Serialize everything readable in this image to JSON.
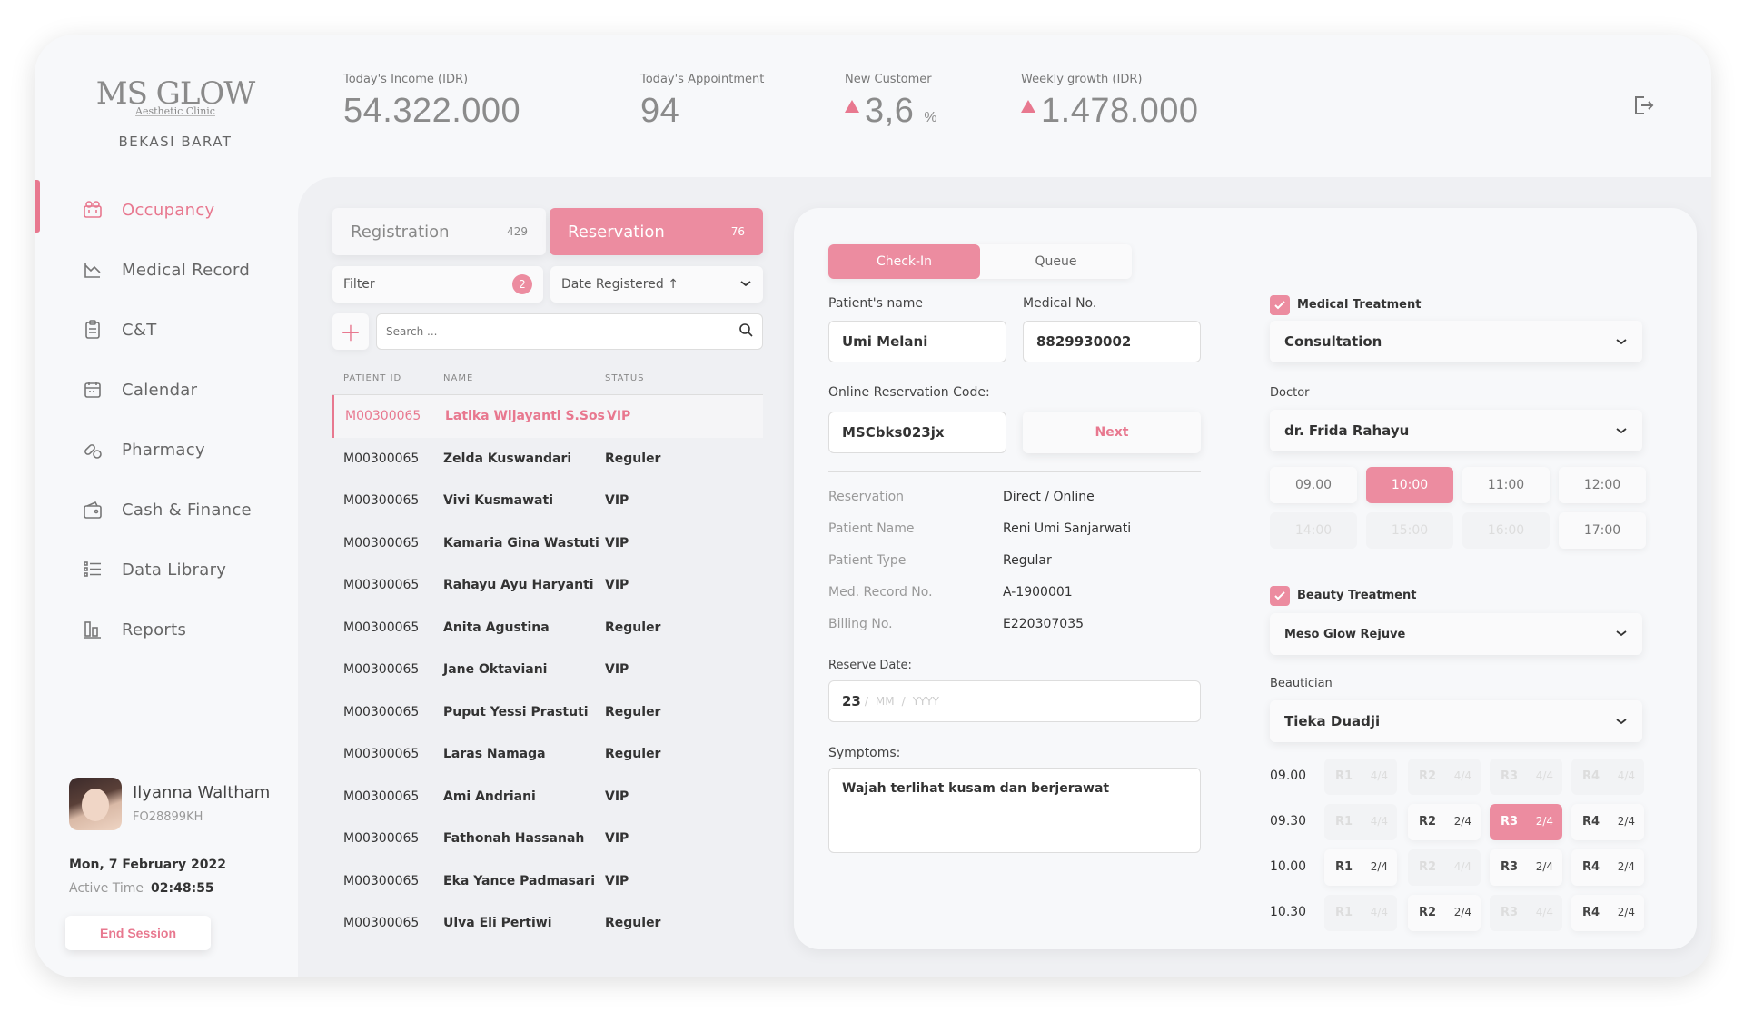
{
  "header": {
    "brand": "MS GLOW",
    "brand_sub": "Aesthetic Clinic",
    "branch": "BEKASI BARAT",
    "stats": [
      {
        "label": "Today's Income (IDR)",
        "value": "54.322.000",
        "trend": ""
      },
      {
        "label": "Today's Appointment",
        "value": "94",
        "trend": ""
      },
      {
        "label": "New Customer",
        "value": "3,6",
        "unit": "%",
        "trend": "up"
      },
      {
        "label": "Weekly growth (IDR)",
        "value": "1.478.000",
        "trend": "up"
      }
    ],
    "logout_icon": "logout-icon"
  },
  "sidebar": {
    "items": [
      {
        "label": "Occupancy",
        "icon": "occupancy-icon",
        "active": true
      },
      {
        "label": "Medical Record",
        "icon": "medical-record-icon"
      },
      {
        "label": "C&T",
        "icon": "clipboard-icon"
      },
      {
        "label": "Calendar",
        "icon": "calendar-icon"
      },
      {
        "label": "Pharmacy",
        "icon": "pharmacy-icon"
      },
      {
        "label": "Cash & Finance",
        "icon": "wallet-icon"
      },
      {
        "label": "Data Library",
        "icon": "list-icon"
      },
      {
        "label": "Reports",
        "icon": "reports-icon"
      }
    ],
    "user": {
      "name": "Ilyanna Waltham",
      "id": "FO28899KH",
      "date": "Mon, 7 February 2022",
      "active_label": "Active Time",
      "active_time": "02:48:55",
      "end_session": "End Session"
    }
  },
  "list": {
    "tabs": [
      {
        "label": "Registration",
        "count": "429",
        "active": false
      },
      {
        "label": "Reservation",
        "count": "76",
        "active": true
      }
    ],
    "filter_label": "Filter",
    "filter_count": "2",
    "sort_label": "Date Registered ↑",
    "search_placeholder": "Search ...",
    "columns": [
      "PATIENT ID",
      "NAME",
      "STATUS"
    ],
    "rows": [
      {
        "id": "M00300065",
        "name": "Latika Wijayanti S.Sos",
        "status": "VIP"
      },
      {
        "id": "M00300065",
        "name": "Zelda Kuswandari",
        "status": "Reguler"
      },
      {
        "id": "M00300065",
        "name": "Vivi Kusmawati",
        "status": "VIP"
      },
      {
        "id": "M00300065",
        "name": "Kamaria Gina Wastuti",
        "status": "VIP"
      },
      {
        "id": "M00300065",
        "name": "Rahayu Ayu Haryanti",
        "status": "VIP"
      },
      {
        "id": "M00300065",
        "name": "Anita Agustina",
        "status": "Reguler"
      },
      {
        "id": "M00300065",
        "name": "Jane Oktaviani",
        "status": "VIP"
      },
      {
        "id": "M00300065",
        "name": "Puput Yessi Prastuti",
        "status": "Reguler"
      },
      {
        "id": "M00300065",
        "name": "Laras Namaga",
        "status": "Reguler"
      },
      {
        "id": "M00300065",
        "name": "Ami Andriani",
        "status": "VIP"
      },
      {
        "id": "M00300065",
        "name": "Fathonah Hassanah",
        "status": "VIP"
      },
      {
        "id": "M00300065",
        "name": "Eka Yance Padmasari",
        "status": "VIP"
      },
      {
        "id": "M00300065",
        "name": "Ulva Eli Pertiwi",
        "status": "Reguler"
      }
    ]
  },
  "form": {
    "seg_checkin": "Check-In",
    "seg_queue": "Queue",
    "patient_name_label": "Patient's name",
    "patient_name": "Umi Melani",
    "medical_no_label": "Medical No.",
    "medical_no": "8829930002",
    "online_code_label": "Online Reservation Code:",
    "online_code": "MSCbks023jx",
    "next_label": "Next",
    "info": [
      {
        "k": "Reservation",
        "v": "Direct / Online"
      },
      {
        "k": "Patient Name",
        "v": "Reni Umi Sanjarwati"
      },
      {
        "k": "Patient Type",
        "v": "Regular"
      },
      {
        "k": "Med. Record No.",
        "v": "A-1900001"
      },
      {
        "k": "Billing No.",
        "v": "E220307035"
      }
    ],
    "reserve_date_label": "Reserve Date:",
    "reserve_day": "23",
    "reserve_mm": "MM",
    "reserve_yyyy": "YYYY",
    "symptoms_label": "Symptoms:",
    "symptoms": "Wajah terlihat kusam dan berjerawat"
  },
  "treatment": {
    "medical_label": "Medical Treatment",
    "medical_value": "Consultation",
    "doctor_label": "Doctor",
    "doctor_value": "dr. Frida Rahayu",
    "slots": [
      {
        "t": "09.00",
        "state": "normal"
      },
      {
        "t": "10:00",
        "state": "selected"
      },
      {
        "t": "11:00",
        "state": "normal"
      },
      {
        "t": "12:00",
        "state": "normal"
      },
      {
        "t": "14:00",
        "state": "disabled"
      },
      {
        "t": "15:00",
        "state": "disabled"
      },
      {
        "t": "16:00",
        "state": "disabled"
      },
      {
        "t": "17:00",
        "state": "normal"
      }
    ],
    "beauty_label": "Beauty Treatment",
    "beauty_value": "Meso Glow Rejuve",
    "beautician_label": "Beautician",
    "beautician_value": "Tieka Duadji",
    "room_times": [
      "09.00",
      "09.30",
      "10.00",
      "10.30"
    ],
    "rooms": [
      [
        {
          "r": "R1",
          "c": "4/4",
          "s": "disabled"
        },
        {
          "r": "R2",
          "c": "4/4",
          "s": "disabled"
        },
        {
          "r": "R3",
          "c": "4/4",
          "s": "disabled"
        },
        {
          "r": "R4",
          "c": "4/4",
          "s": "disabled"
        }
      ],
      [
        {
          "r": "R1",
          "c": "4/4",
          "s": "disabled"
        },
        {
          "r": "R2",
          "c": "2/4",
          "s": "normal"
        },
        {
          "r": "R3",
          "c": "2/4",
          "s": "selected"
        },
        {
          "r": "R4",
          "c": "2/4",
          "s": "normal"
        }
      ],
      [
        {
          "r": "R1",
          "c": "2/4",
          "s": "normal"
        },
        {
          "r": "R2",
          "c": "4/4",
          "s": "disabled"
        },
        {
          "r": "R3",
          "c": "2/4",
          "s": "normal"
        },
        {
          "r": "R4",
          "c": "2/4",
          "s": "normal"
        }
      ],
      [
        {
          "r": "R1",
          "c": "4/4",
          "s": "disabled"
        },
        {
          "r": "R2",
          "c": "2/4",
          "s": "normal"
        },
        {
          "r": "R3",
          "c": "4/4",
          "s": "disabled"
        },
        {
          "r": "R4",
          "c": "2/4",
          "s": "normal"
        }
      ]
    ]
  }
}
